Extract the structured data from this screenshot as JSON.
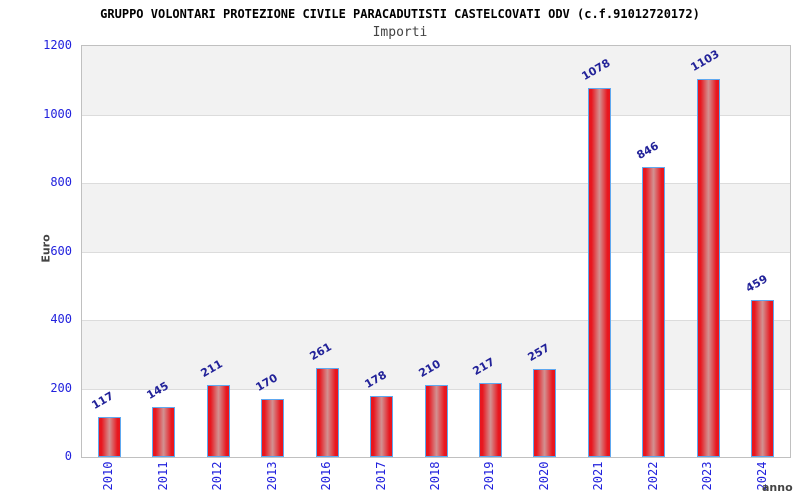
{
  "chart_data": {
    "type": "bar",
    "title": "GRUPPO VOLONTARI PROTEZIONE CIVILE PARACADUTISTI CASTELCOVATI ODV (c.f.91012720172)",
    "subtitle": "Importi",
    "xlabel": "anno",
    "ylabel": "Euro",
    "categories": [
      "2010",
      "2011",
      "2012",
      "2013",
      "2016",
      "2017",
      "2018",
      "2019",
      "2020",
      "2021",
      "2022",
      "2023",
      "2024"
    ],
    "values": [
      117,
      145,
      211,
      170,
      261,
      178,
      210,
      217,
      257,
      1078,
      846,
      1103,
      459
    ],
    "ylim": [
      0,
      1200
    ],
    "yticks": [
      0,
      200,
      400,
      600,
      800,
      1000,
      1200
    ],
    "grid": "alternating horizontal bands",
    "legend": "none",
    "bar_labels_rotation_deg": -30,
    "x_tick_rotation_deg": -90
  },
  "colors": {
    "background": "#ffffff",
    "title_color": "#000000",
    "subtitle_color": "#444444",
    "axis_name_color": "#444444",
    "tick_label_blue": "#2222dd",
    "value_label_navy": "#222299",
    "bar_red": "#e8161e",
    "bar_center_highlight": "#d29292",
    "bar_border_blue": "#5ea8f0",
    "band_gray": "#f2f2f2",
    "band_white": "#ffffff",
    "gridline": "#dcdcdc",
    "plot_border": "#c0c0c0"
  }
}
